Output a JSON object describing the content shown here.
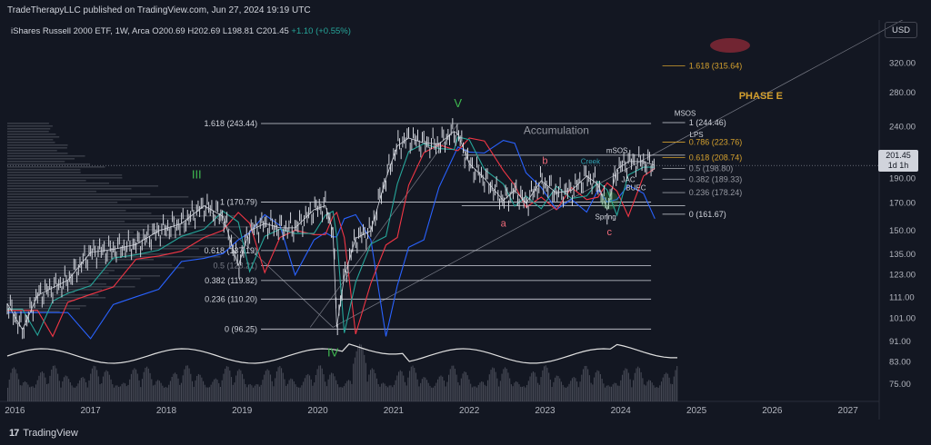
{
  "header": {
    "publish": "TradeTherapyLLC published on TradingView.com, Jun 27, 2024 19:19 UTC",
    "symbol": "iShares Russell 2000 ETF, 1W, Arca",
    "ohlc": "O200.69  H202.69  L198.81  C201.45",
    "change": "+1.10 (+0.55%)",
    "currency": "USD"
  },
  "last_price": {
    "value": "201.45",
    "interval": "1d 1h"
  },
  "footer": {
    "logo_text": "TradingView"
  },
  "colors": {
    "up": "#d1d4dc",
    "down": "#d1d4dc",
    "green_label": "#3fb950",
    "red_label": "#f06b7a",
    "gold": "#d4a02e",
    "cyan": "#2fa0b0"
  },
  "chart_data": {
    "type": "line",
    "x_ticks": [
      "2016",
      "2017",
      "2018",
      "2019",
      "2020",
      "2021",
      "2022",
      "2023",
      "2024",
      "2025",
      "2026",
      "2027"
    ],
    "y_ticks": [
      75,
      83,
      91,
      101,
      111,
      123,
      135,
      150,
      170,
      190,
      210,
      240,
      280,
      320
    ],
    "y_scale": "log",
    "y_range": [
      70,
      355
    ],
    "x_range": [
      2015.9,
      2027.4
    ],
    "price": {
      "x": [
        2015.9,
        2016.1,
        2016.3,
        2016.5,
        2016.7,
        2017.0,
        2017.3,
        2017.6,
        2017.9,
        2018.2,
        2018.5,
        2018.75,
        2018.95,
        2019.1,
        2019.3,
        2019.5,
        2019.7,
        2019.95,
        2020.1,
        2020.2,
        2020.25,
        2020.35,
        2020.5,
        2020.7,
        2020.9,
        2021.05,
        2021.2,
        2021.4,
        2021.6,
        2021.8,
        2021.85,
        2022.0,
        2022.2,
        2022.45,
        2022.6,
        2022.75,
        2022.95,
        2023.15,
        2023.35,
        2023.55,
        2023.7,
        2023.82,
        2023.95,
        2024.1,
        2024.3,
        2024.45
      ],
      "y": [
        108,
        96,
        112,
        116,
        120,
        136,
        138,
        141,
        150,
        155,
        168,
        160,
        128,
        150,
        155,
        152,
        152,
        165,
        168,
        150,
        97,
        122,
        145,
        150,
        190,
        220,
        228,
        223,
        222,
        235,
        232,
        203,
        190,
        172,
        180,
        170,
        188,
        178,
        180,
        192,
        185,
        165,
        198,
        205,
        205,
        201.45
      ]
    },
    "left_fib": [
      {
        "label": "1.618 (243.44)",
        "value": 243.44
      },
      {
        "label": "1 (170.79)",
        "value": 170.79
      },
      {
        "label": "0.618 (137.19)",
        "value": 137.19
      },
      {
        "label": "0.5 (128.21)",
        "value": 128.21
      },
      {
        "label": "0.382 (119.82)",
        "value": 119.82
      },
      {
        "label": "0.236 (110.20)",
        "value": 110.2
      },
      {
        "label": "0 (96.25)",
        "value": 96.25
      }
    ],
    "right_fib": [
      {
        "label": "1.618 (315.64)",
        "value": 315.64,
        "color": "gold"
      },
      {
        "label": "1 (244.46)",
        "value": 244.46,
        "color": "white"
      },
      {
        "label": "0.786 (223.76)",
        "value": 223.76,
        "color": "gold"
      },
      {
        "label": "0.618 (208.74)",
        "value": 208.74,
        "color": "gold"
      },
      {
        "label": "0.5 (198.80)",
        "value": 198.8,
        "color": "gray"
      },
      {
        "label": "0.382 (189.33)",
        "value": 189.33,
        "color": "gray"
      },
      {
        "label": "0.236 (178.24)",
        "value": 178.24,
        "color": "gray"
      },
      {
        "label": "0 (161.67)",
        "value": 161.67,
        "color": "white"
      }
    ],
    "annotations": [
      {
        "text": "V",
        "x": 2021.85,
        "y": 262,
        "color": "green"
      },
      {
        "text": "IV",
        "x": 2020.2,
        "y": 85,
        "color": "green"
      },
      {
        "text": "III",
        "x": 2018.4,
        "y": 190,
        "color": "green"
      },
      {
        "text": "Accumulation",
        "x": 2023.15,
        "y": 232,
        "color": "gray"
      },
      {
        "text": "PHASE E",
        "x": 2025.85,
        "y": 272,
        "color": "gold"
      },
      {
        "text": "MSOS",
        "x": 2024.85,
        "y": 252,
        "color": "white"
      },
      {
        "text": "LPS",
        "x": 2025.0,
        "y": 229,
        "color": "white"
      },
      {
        "text": "mSOS",
        "x": 2023.95,
        "y": 213,
        "color": "white"
      },
      {
        "text": "Creek",
        "x": 2023.6,
        "y": 203,
        "color": "cyan"
      },
      {
        "text": "b",
        "x": 2023.0,
        "y": 203,
        "color": "red"
      },
      {
        "text": "JAC",
        "x": 2024.1,
        "y": 187,
        "color": "white"
      },
      {
        "text": "BUEC",
        "x": 2024.2,
        "y": 180,
        "color": "white"
      },
      {
        "text": "Spring",
        "x": 2023.8,
        "y": 158,
        "color": "white"
      },
      {
        "text": "a",
        "x": 2022.45,
        "y": 153,
        "color": "red"
      },
      {
        "text": "c",
        "x": 2023.85,
        "y": 147,
        "color": "red"
      }
    ]
  }
}
